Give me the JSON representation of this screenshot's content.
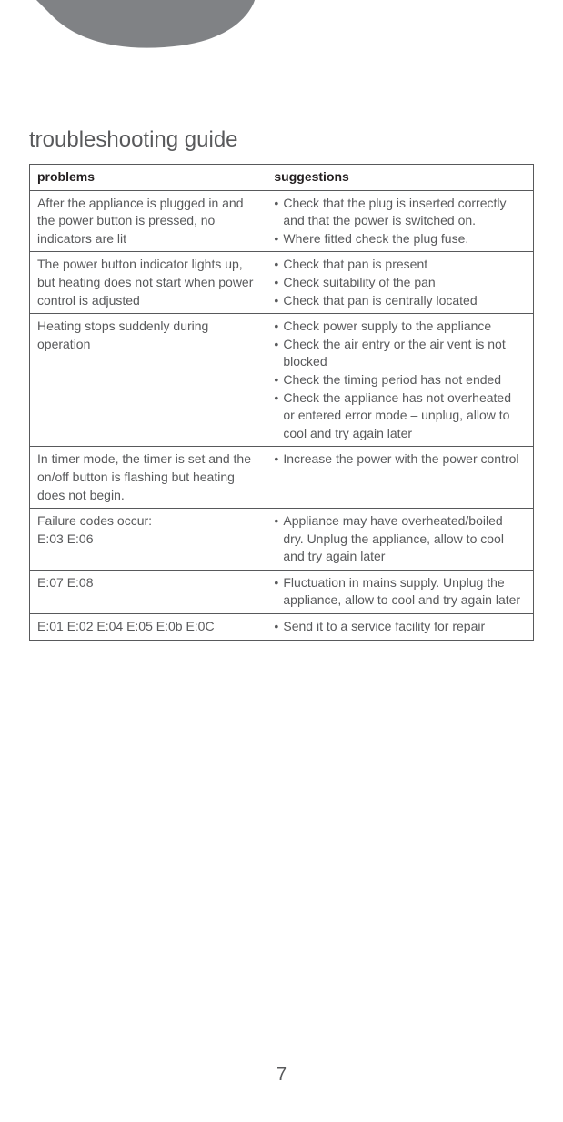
{
  "page": {
    "title": "troubleshooting guide",
    "number": "7"
  },
  "table": {
    "headers": {
      "problems": "problems",
      "suggestions": "suggestions"
    },
    "rows": [
      {
        "problem": "After the appliance is plugged in and the power button is pressed, no indicators are lit",
        "suggestions": [
          "Check that the plug is inserted correctly and that the power is switched on.",
          "Where fitted check the plug fuse."
        ]
      },
      {
        "problem": "The power button indicator lights up, but heating does not start when power control is adjusted",
        "suggestions": [
          "Check that pan is present",
          "Check suitability of the pan",
          "Check that pan is centrally located"
        ]
      },
      {
        "problem": "Heating stops suddenly during operation",
        "suggestions": [
          "Check power supply to the appliance",
          "Check the air entry or the air vent is not blocked",
          "Check the timing period has not ended",
          "Check the appliance has not overheated or entered error mode – unplug, allow to cool and try again later"
        ]
      },
      {
        "problem": "In timer mode, the timer is set and the on/off button is flashing but heating does not begin.",
        "suggestions": [
          "Increase the power with the power control"
        ]
      },
      {
        "problem": "Failure codes occur:\nE:03 E:06",
        "suggestions": [
          "Appliance may have overheated/boiled dry. Unplug the appliance, allow to cool and try again later"
        ]
      },
      {
        "problem": "E:07 E:08",
        "suggestions": [
          "Fluctuation in mains supply. Unplug the appliance, allow to cool and try again later"
        ]
      },
      {
        "problem": "E:01 E:02 E:04 E:05 E:0b E:0C",
        "suggestions": [
          "Send it to a service facility for repair"
        ]
      }
    ]
  },
  "colors": {
    "text": "#58595b",
    "header_text": "#231f20",
    "border": "#58595b",
    "swoosh": "#808285",
    "background": "#ffffff"
  }
}
